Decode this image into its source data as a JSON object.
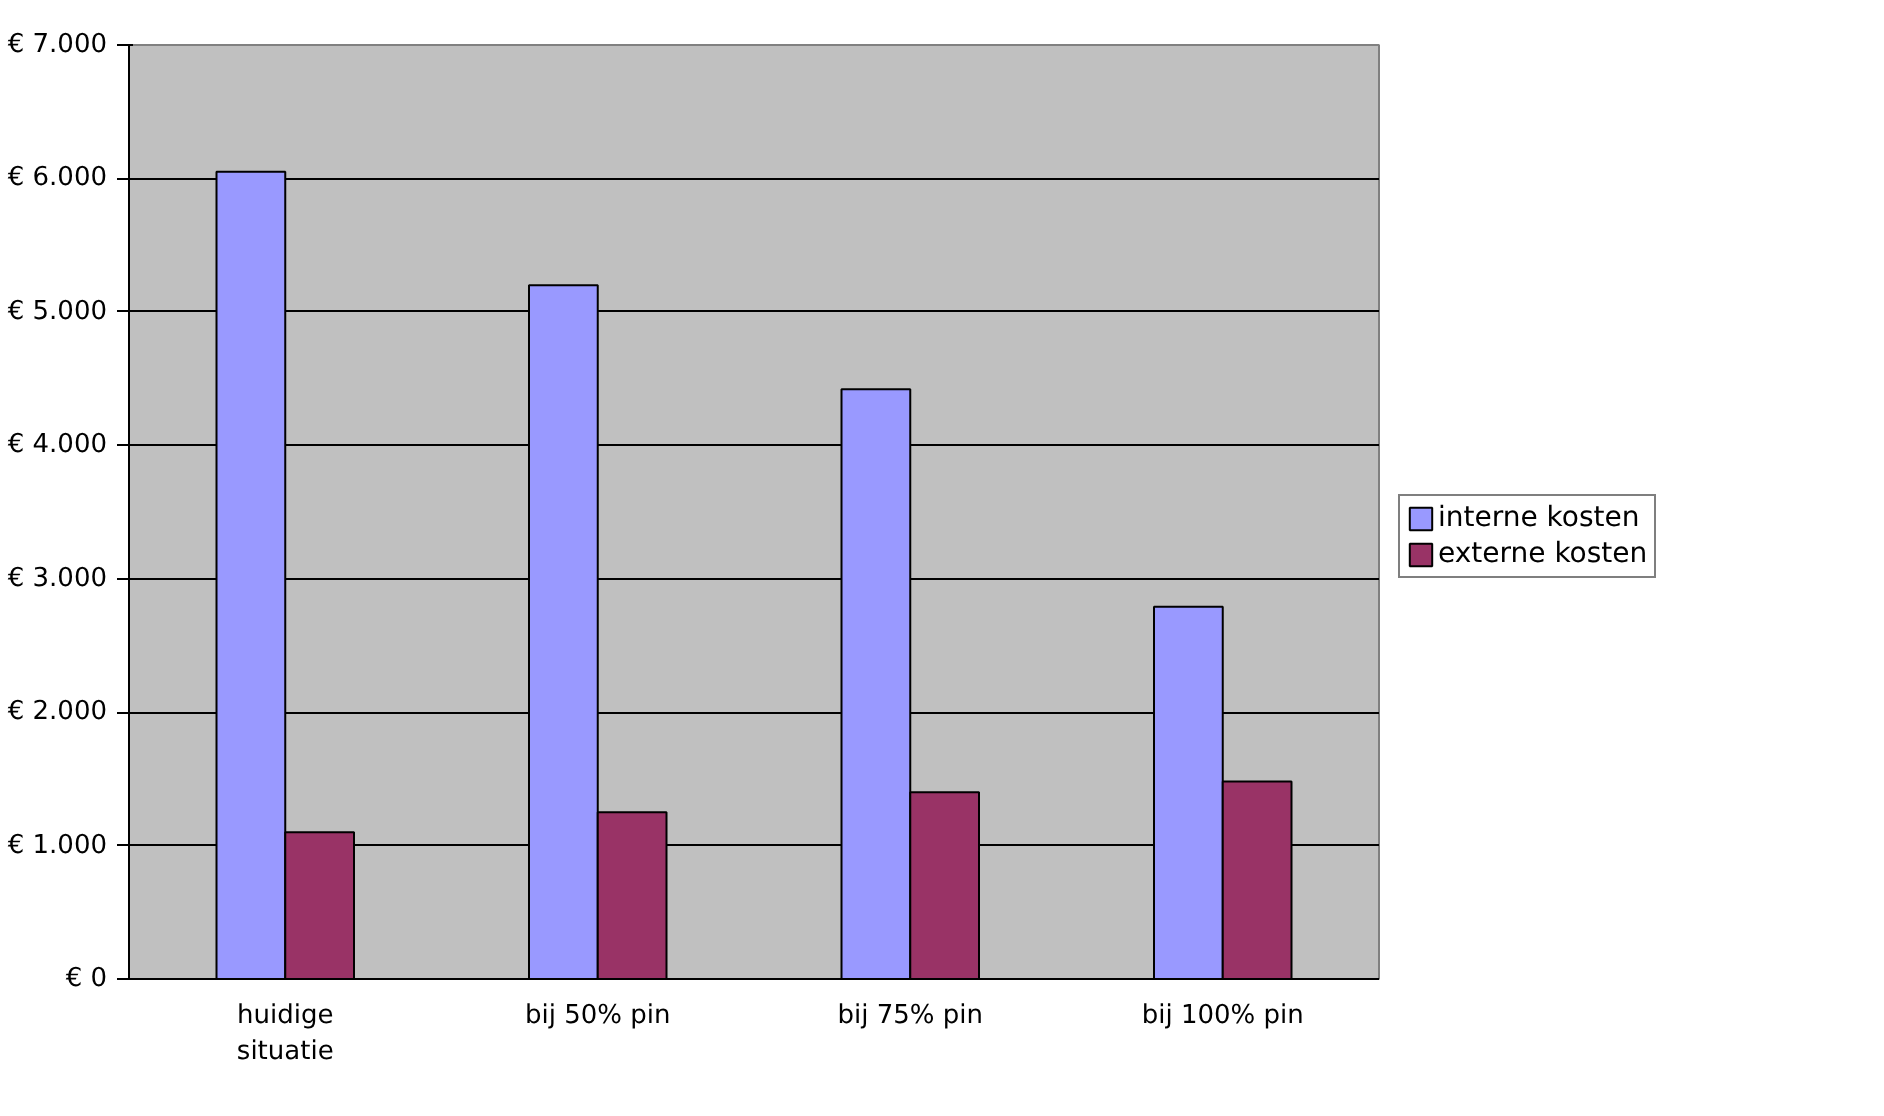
{
  "chart_data": {
    "type": "bar",
    "categories": [
      "huidige situatie",
      "bij 50% pin",
      "bij 75% pin",
      "bij 100% pin"
    ],
    "series": [
      {
        "name": "interne kosten",
        "color": "#9999ff",
        "values": [
          6050,
          5200,
          4420,
          2790
        ]
      },
      {
        "name": "externe kosten",
        "color": "#993366",
        "values": [
          1100,
          1250,
          1400,
          1480
        ]
      }
    ],
    "ylim": [
      0,
      7000
    ],
    "yticks": [
      {
        "value": 0,
        "label": "€ 0"
      },
      {
        "value": 1000,
        "label": "€ 1.000"
      },
      {
        "value": 2000,
        "label": "€ 2.000"
      },
      {
        "value": 3000,
        "label": "€ 3.000"
      },
      {
        "value": 4000,
        "label": "€ 4.000"
      },
      {
        "value": 5000,
        "label": "€ 5.000"
      },
      {
        "value": 6000,
        "label": "€ 6.000"
      },
      {
        "value": 7000,
        "label": "€ 7.000"
      }
    ],
    "grid": "y",
    "legend": "right"
  }
}
